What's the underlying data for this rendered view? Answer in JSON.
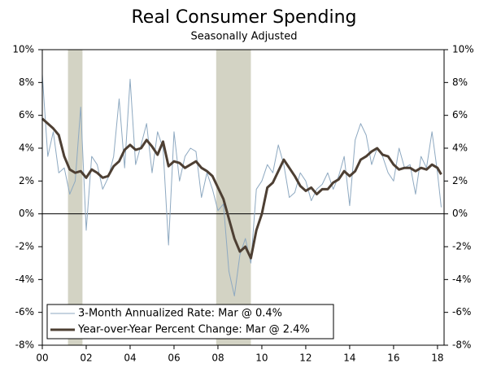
{
  "chart_data": {
    "type": "line",
    "title": "Real Consumer Spending",
    "subtitle": "Seasonally Adjusted",
    "x": [
      2000,
      2000.25,
      2000.5,
      2000.75,
      2001,
      2001.25,
      2001.5,
      2001.75,
      2002,
      2002.25,
      2002.5,
      2002.75,
      2003,
      2003.25,
      2003.5,
      2003.75,
      2004,
      2004.25,
      2004.5,
      2004.75,
      2005,
      2005.25,
      2005.5,
      2005.75,
      2006,
      2006.25,
      2006.5,
      2006.75,
      2007,
      2007.25,
      2007.5,
      2007.75,
      2008,
      2008.25,
      2008.5,
      2008.75,
      2009,
      2009.25,
      2009.5,
      2009.75,
      2010,
      2010.25,
      2010.5,
      2010.75,
      2011,
      2011.25,
      2011.5,
      2011.75,
      2012,
      2012.25,
      2012.5,
      2012.75,
      2013,
      2013.25,
      2013.5,
      2013.75,
      2014,
      2014.25,
      2014.5,
      2014.75,
      2015,
      2015.25,
      2015.5,
      2015.75,
      2016,
      2016.25,
      2016.5,
      2016.75,
      2017,
      2017.25,
      2017.5,
      2017.75,
      2018,
      2018.17
    ],
    "series": [
      {
        "name": "3-Month Annualized Rate: Mar @ 0.4%",
        "color": "#8ea9c1",
        "width": 1,
        "values": [
          8.5,
          3.5,
          5.0,
          2.5,
          2.8,
          1.2,
          2.0,
          6.5,
          -1.0,
          3.5,
          3.0,
          1.5,
          2.2,
          3.5,
          7.0,
          2.8,
          8.2,
          3.0,
          4.2,
          5.5,
          2.5,
          5.0,
          4.0,
          -1.9,
          5.0,
          2.0,
          3.5,
          4.0,
          3.8,
          1.0,
          2.5,
          1.5,
          0.2,
          0.6,
          -3.5,
          -5.0,
          -2.5,
          -1.5,
          -3.0,
          1.5,
          2.0,
          3.0,
          2.5,
          4.2,
          3.0,
          1.0,
          1.3,
          2.5,
          2.0,
          0.8,
          1.5,
          1.8,
          2.5,
          1.5,
          2.3,
          3.5,
          0.5,
          4.5,
          5.5,
          4.8,
          3.0,
          4.0,
          3.5,
          2.5,
          2.0,
          4.0,
          2.8,
          3.0,
          1.2,
          3.5,
          2.8,
          5.0,
          2.5,
          0.4
        ]
      },
      {
        "name": "Year-over-Year Percent Change: Mar @ 2.4%",
        "color": "#4d3f33",
        "width": 3,
        "values": [
          5.8,
          5.5,
          5.2,
          4.8,
          3.5,
          2.7,
          2.5,
          2.6,
          2.2,
          2.7,
          2.5,
          2.2,
          2.3,
          2.9,
          3.2,
          3.9,
          4.2,
          3.9,
          4.0,
          4.5,
          4.1,
          3.6,
          4.4,
          2.9,
          3.2,
          3.1,
          2.8,
          3.0,
          3.2,
          2.8,
          2.6,
          2.3,
          1.6,
          0.9,
          -0.3,
          -1.5,
          -2.3,
          -2.0,
          -2.7,
          -1.0,
          0.0,
          1.6,
          1.9,
          2.6,
          3.3,
          2.8,
          2.3,
          1.7,
          1.4,
          1.6,
          1.2,
          1.5,
          1.5,
          1.9,
          2.1,
          2.6,
          2.3,
          2.6,
          3.3,
          3.5,
          3.8,
          4.0,
          3.6,
          3.5,
          3.0,
          2.7,
          2.8,
          2.8,
          2.6,
          2.8,
          2.7,
          3.0,
          2.8,
          2.4
        ]
      }
    ],
    "shaded_periods": [
      [
        2001.17,
        2001.83
      ],
      [
        2007.92,
        2009.5
      ]
    ],
    "shade_color": "#d3d3c4",
    "xlim": [
      2000,
      2018.3
    ],
    "xticks": [
      {
        "value": 2000,
        "label": "00"
      },
      {
        "value": 2002,
        "label": "02"
      },
      {
        "value": 2004,
        "label": "04"
      },
      {
        "value": 2006,
        "label": "06"
      },
      {
        "value": 2008,
        "label": "08"
      },
      {
        "value": 2010,
        "label": "10"
      },
      {
        "value": 2012,
        "label": "12"
      },
      {
        "value": 2014,
        "label": "14"
      },
      {
        "value": 2016,
        "label": "16"
      },
      {
        "value": 2018,
        "label": "18"
      }
    ],
    "ylim": [
      -8,
      10
    ],
    "yticks": [
      {
        "value": -8,
        "label": "-8%"
      },
      {
        "value": -6,
        "label": "-6%"
      },
      {
        "value": -4,
        "label": "-4%"
      },
      {
        "value": -2,
        "label": "-2%"
      },
      {
        "value": 0,
        "label": "0%"
      },
      {
        "value": 2,
        "label": "2%"
      },
      {
        "value": 4,
        "label": "4%"
      },
      {
        "value": 6,
        "label": "6%"
      },
      {
        "value": 8,
        "label": "8%"
      },
      {
        "value": 10,
        "label": "10%"
      }
    ],
    "y2lim": [
      -8,
      10
    ],
    "y2ticks": [
      {
        "value": -8,
        "label": "-8%"
      },
      {
        "value": -6,
        "label": "-6%"
      },
      {
        "value": -4,
        "label": "-4%"
      },
      {
        "value": -2,
        "label": "-2%"
      },
      {
        "value": 0,
        "label": "0%"
      },
      {
        "value": 2,
        "label": "2%"
      },
      {
        "value": 4,
        "label": "4%"
      },
      {
        "value": 6,
        "label": "6%"
      },
      {
        "value": 8,
        "label": "8%"
      },
      {
        "value": 10,
        "label": "10%"
      }
    ],
    "legend": "lower left"
  }
}
